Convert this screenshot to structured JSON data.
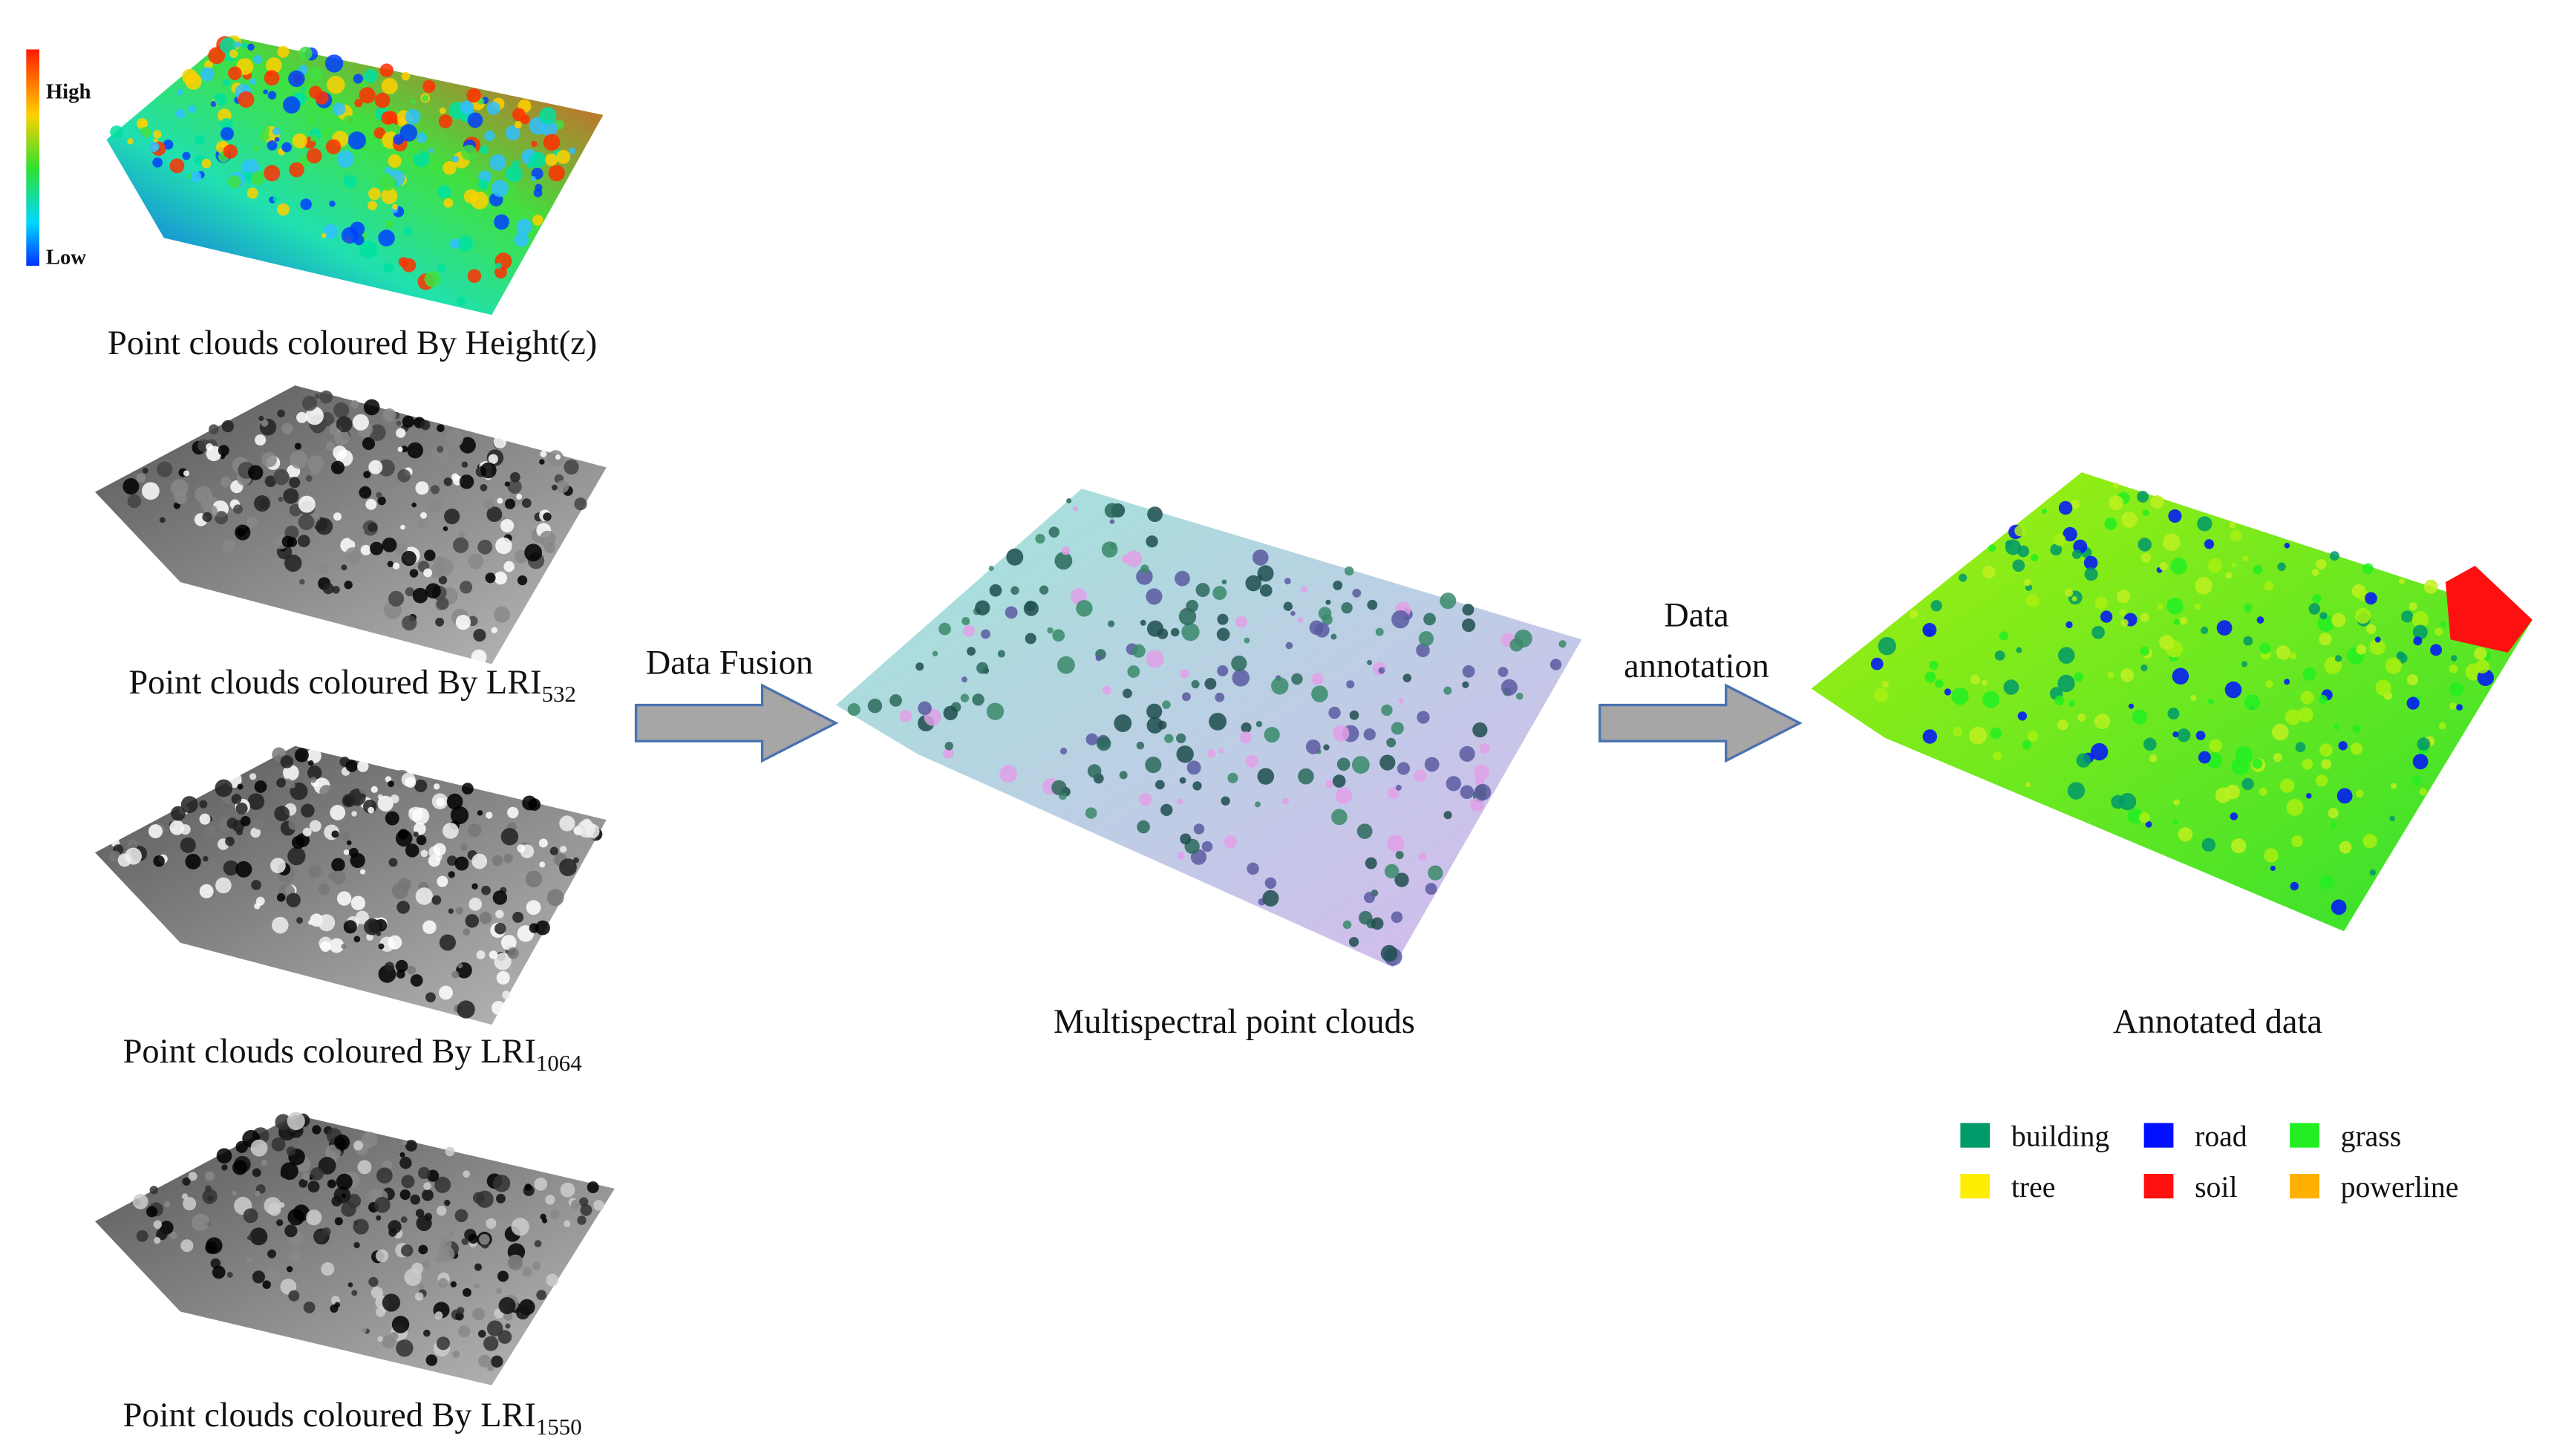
{
  "height_scale": {
    "high": "High",
    "low": "Low"
  },
  "inputs": [
    {
      "text": "Point clouds coloured By Height(z)"
    },
    {
      "text": "Point clouds coloured By LRI",
      "subscript": "532"
    },
    {
      "text": "Point clouds coloured By LRI",
      "subscript": "1064"
    },
    {
      "text": "Point clouds coloured By LRI",
      "subscript": "1550"
    }
  ],
  "steps": {
    "fusion": "Data Fusion",
    "annotation": [
      "Data",
      "annotation"
    ]
  },
  "outputs": {
    "multispectral": "Multispectral point clouds",
    "annotated": "Annotated data"
  },
  "legend": [
    {
      "label": "building",
      "color": "#00996a"
    },
    {
      "label": "road",
      "color": "#0010ff"
    },
    {
      "label": "grass",
      "color": "#22ee22"
    },
    {
      "label": "tree",
      "color": "#ffee00"
    },
    {
      "label": "soil",
      "color": "#ff1010"
    },
    {
      "label": "powerline",
      "color": "#ffb000"
    }
  ]
}
